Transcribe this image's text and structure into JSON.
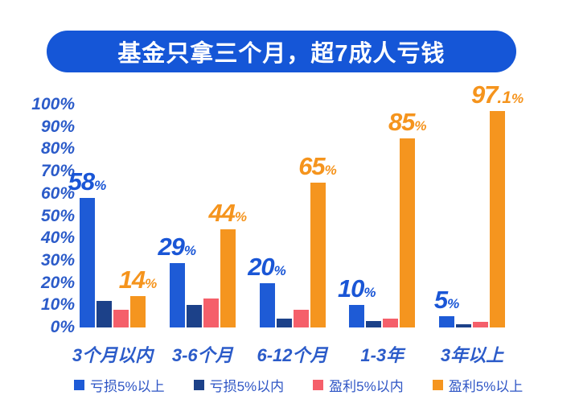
{
  "colors": {
    "banner_bg": "#1556d7",
    "banner_text": "#ffffff",
    "axis_text": "#2b5bc9",
    "legend_text": "#2e55c5",
    "value_blue": "#1a56d6",
    "value_orange": "#f5941d"
  },
  "chart_data": {
    "type": "bar",
    "title": "基金只拿三个月，超7成人亏钱",
    "categories": [
      "3个月以内",
      "3-6个月",
      "6-12个月",
      "1-3年",
      "3年以上"
    ],
    "series": [
      {
        "key": "loss-over-5pct",
        "name": "亏损5%以上",
        "color": "#1e5bd6",
        "values": [
          58,
          29,
          20,
          10,
          5
        ]
      },
      {
        "key": "loss-within-5pct",
        "name": "亏损5%以内",
        "color": "#1c4189",
        "values": [
          12,
          10,
          4,
          3,
          1.5
        ]
      },
      {
        "key": "profit-within-5pct",
        "name": "盈利5%以内",
        "color": "#f55f6a",
        "values": [
          8,
          13,
          8,
          4,
          2.5
        ]
      },
      {
        "key": "profit-over-5pct",
        "name": "盈利5%以上",
        "color": "#f5951f",
        "values": [
          14,
          44,
          65,
          85,
          97.1
        ]
      }
    ],
    "data_labels": [
      {
        "category_index": 0,
        "series_index": 0,
        "num": "58",
        "pct": "%",
        "color": "#1a56d6"
      },
      {
        "category_index": 0,
        "series_index": 3,
        "num": "14",
        "pct": "%",
        "color": "#f5941d"
      },
      {
        "category_index": 1,
        "series_index": 0,
        "num": "29",
        "pct": "%",
        "color": "#1a56d6"
      },
      {
        "category_index": 1,
        "series_index": 3,
        "num": "44",
        "pct": "%",
        "color": "#f5941d"
      },
      {
        "category_index": 2,
        "series_index": 0,
        "num": "20",
        "pct": "%",
        "color": "#1a56d6"
      },
      {
        "category_index": 2,
        "series_index": 3,
        "num": "65",
        "pct": "%",
        "color": "#f5941d"
      },
      {
        "category_index": 3,
        "series_index": 0,
        "num": "10",
        "pct": "%",
        "color": "#1a56d6"
      },
      {
        "category_index": 3,
        "series_index": 3,
        "num": "85",
        "pct": "%",
        "color": "#f5941d"
      },
      {
        "category_index": 4,
        "series_index": 0,
        "num": "5",
        "pct": "%",
        "color": "#1a56d6"
      },
      {
        "category_index": 4,
        "series_index": 3,
        "num": "97",
        "dec": ".1",
        "pct": "%",
        "color": "#f5941d"
      }
    ],
    "y_ticks": [
      "100%",
      "90%",
      "80%",
      "70%",
      "60%",
      "50%",
      "40%",
      "30%",
      "20%",
      "10%",
      "0%"
    ],
    "ylim": [
      0,
      100
    ],
    "grid": false,
    "legend_position": "bottom",
    "legend": [
      "亏损5%以上",
      "亏损5%以内",
      "盈利5%以内",
      "盈利5%以上"
    ]
  }
}
